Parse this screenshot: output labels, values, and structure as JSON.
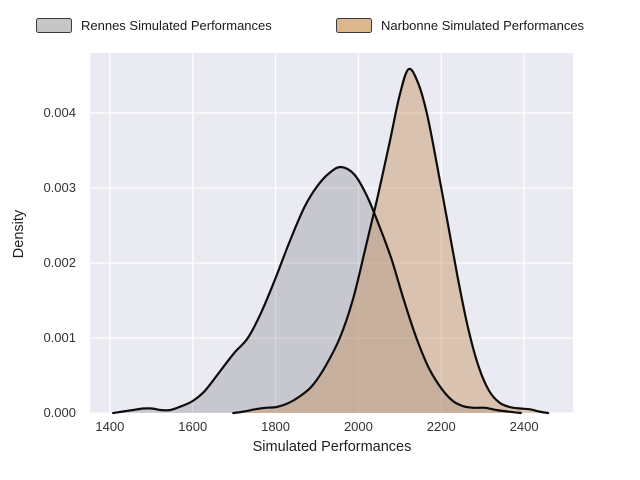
{
  "figure": {
    "background": "#ffffff"
  },
  "legend": {
    "position": "top",
    "swatch_border": "#3c3c3c"
  },
  "chart_data": {
    "type": "area",
    "subtype": "kde-density",
    "title": "",
    "xlabel": "Simulated Performances",
    "ylabel": "Density",
    "grid": true,
    "plot_bg": "#eaeaf2",
    "grid_color": "#ffffff",
    "legend_position": "top",
    "x_axis": {
      "min": 1352,
      "max": 2518,
      "ticks": [
        1400,
        1600,
        1800,
        2000,
        2200,
        2400
      ],
      "tick_labels": [
        "1400",
        "1600",
        "1800",
        "2000",
        "2200",
        "2400"
      ]
    },
    "y_axis": {
      "min": 0,
      "max": 0.0048,
      "ticks": [
        0,
        0.001,
        0.002,
        0.003,
        0.004
      ],
      "tick_labels": [
        "0.000",
        "0.001",
        "0.002",
        "0.003",
        "0.004"
      ]
    },
    "series": [
      {
        "id": "rennes",
        "name": "Rennes Simulated Performances",
        "legend_swatch": "#c6c6c6",
        "fill": "rgba(120,120,130,0.30)",
        "stroke": "#0d0d0d",
        "peak": {
          "x": 1958,
          "density": 0.00328
        },
        "points": [
          [
            1408,
            0
          ],
          [
            1432,
            2e-05
          ],
          [
            1456,
            4e-05
          ],
          [
            1480,
            6e-05
          ],
          [
            1502,
            6e-05
          ],
          [
            1522,
            4e-05
          ],
          [
            1546,
            4e-05
          ],
          [
            1572,
            9e-05
          ],
          [
            1600,
            0.00016
          ],
          [
            1630,
            0.0003
          ],
          [
            1665,
            0.00055
          ],
          [
            1700,
            0.0008
          ],
          [
            1733,
            0.001
          ],
          [
            1766,
            0.00135
          ],
          [
            1800,
            0.0018
          ],
          [
            1835,
            0.0023
          ],
          [
            1870,
            0.00275
          ],
          [
            1900,
            0.00302
          ],
          [
            1930,
            0.0032
          ],
          [
            1958,
            0.00328
          ],
          [
            1990,
            0.00318
          ],
          [
            2020,
            0.0029
          ],
          [
            2050,
            0.0025
          ],
          [
            2080,
            0.00205
          ],
          [
            2110,
            0.0015
          ],
          [
            2140,
            0.001
          ],
          [
            2170,
            0.0006
          ],
          [
            2200,
            0.00033
          ],
          [
            2228,
            0.00016
          ],
          [
            2254,
            9e-05
          ],
          [
            2280,
            7e-05
          ],
          [
            2306,
            7e-05
          ],
          [
            2332,
            4e-05
          ],
          [
            2360,
            2e-05
          ],
          [
            2392,
            0
          ]
        ]
      },
      {
        "id": "narbonne",
        "name": "Narbonne Simulated Performances",
        "legend_swatch": "#ddb88f",
        "fill": "rgba(198,148,96,0.45)",
        "stroke": "#0d0d0d",
        "peak": {
          "x": 2120,
          "density": 0.00458
        },
        "points": [
          [
            1698,
            0
          ],
          [
            1724,
            2e-05
          ],
          [
            1750,
            5e-05
          ],
          [
            1776,
            7e-05
          ],
          [
            1802,
            8e-05
          ],
          [
            1830,
            0.00013
          ],
          [
            1858,
            0.00022
          ],
          [
            1888,
            0.00036
          ],
          [
            1920,
            0.00062
          ],
          [
            1955,
            0.001
          ],
          [
            1986,
            0.0015
          ],
          [
            2015,
            0.00215
          ],
          [
            2045,
            0.00285
          ],
          [
            2075,
            0.0036
          ],
          [
            2098,
            0.0042
          ],
          [
            2120,
            0.00458
          ],
          [
            2142,
            0.00443
          ],
          [
            2165,
            0.004
          ],
          [
            2190,
            0.0033
          ],
          [
            2215,
            0.00255
          ],
          [
            2240,
            0.0018
          ],
          [
            2264,
            0.00115
          ],
          [
            2290,
            0.00062
          ],
          [
            2315,
            0.0003
          ],
          [
            2340,
            0.00014
          ],
          [
            2365,
            8e-05
          ],
          [
            2390,
            6e-05
          ],
          [
            2414,
            5e-05
          ],
          [
            2436,
            2e-05
          ],
          [
            2458,
            0
          ]
        ]
      }
    ]
  }
}
